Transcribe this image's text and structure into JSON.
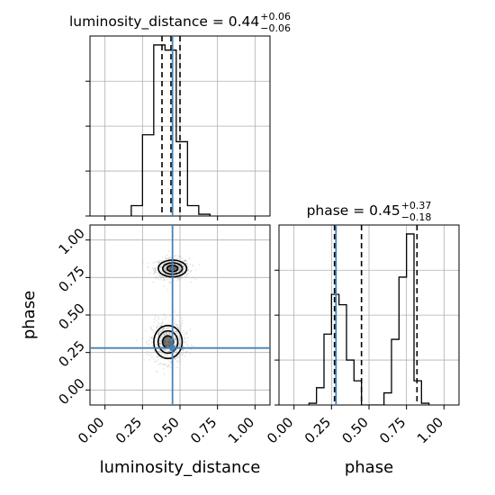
{
  "chart_data": {
    "type": "corner",
    "parameters": [
      "luminosity_distance",
      "phase"
    ],
    "truths": {
      "luminosity_distance": 0.45,
      "phase": 0.28
    },
    "colors": {
      "truth": "#4682b4",
      "hist": "#000000",
      "grid": "#b0b0b0",
      "scatter": "#9a9a9a"
    },
    "grid": true,
    "panels": [
      {
        "name": "luminosity_distance-marginal",
        "type": "histogram",
        "title": {
          "main": "luminosity_distance = 0.44",
          "plus": "+0.06",
          "minus": "−0.06"
        },
        "xlim": [
          -0.1,
          1.1
        ],
        "bin_edges": [
          0.175,
          0.25,
          0.325,
          0.4,
          0.475,
          0.55,
          0.625,
          0.7
        ],
        "counts": [
          0.06,
          0.47,
          0.99,
          0.96,
          0.43,
          0.06,
          0.01
        ],
        "quantiles": [
          0.38,
          0.44,
          0.5
        ],
        "truth": 0.45
      },
      {
        "name": "phase-marginal",
        "type": "histogram",
        "title": {
          "main": "phase = 0.45",
          "plus": "+0.37",
          "minus": "−0.18"
        },
        "xlim": [
          -0.1,
          1.1
        ],
        "bin_edges": [
          0.1,
          0.15,
          0.2,
          0.25,
          0.3,
          0.35,
          0.4,
          0.45,
          0.5,
          0.55,
          0.6,
          0.65,
          0.7,
          0.75,
          0.8,
          0.85,
          0.9
        ],
        "counts": [
          0.01,
          0.1,
          0.41,
          0.64,
          0.58,
          0.26,
          0.14,
          0.0,
          0.0,
          0.0,
          0.07,
          0.38,
          0.74,
          0.99,
          0.14,
          0.01
        ],
        "quantiles": [
          0.27,
          0.45,
          0.82
        ],
        "truth": 0.28
      },
      {
        "name": "joint-2d",
        "type": "2d-density",
        "x": "luminosity_distance",
        "y": "phase",
        "xlim": [
          -0.1,
          1.1
        ],
        "ylim": [
          -0.1,
          1.1
        ],
        "clusters": [
          {
            "center": [
              0.45,
              0.81
            ],
            "spread": [
              0.045,
              0.028
            ]
          },
          {
            "center": [
              0.42,
              0.32
            ],
            "spread": [
              0.045,
              0.055
            ]
          }
        ]
      }
    ],
    "xticks": [
      "0.00",
      "0.25",
      "0.50",
      "0.75",
      "1.00"
    ],
    "yticks": [
      "0.00",
      "0.25",
      "0.50",
      "0.75",
      "1.00"
    ],
    "xlabels": [
      "luminosity_distance",
      "phase"
    ],
    "ylabel": "phase"
  }
}
